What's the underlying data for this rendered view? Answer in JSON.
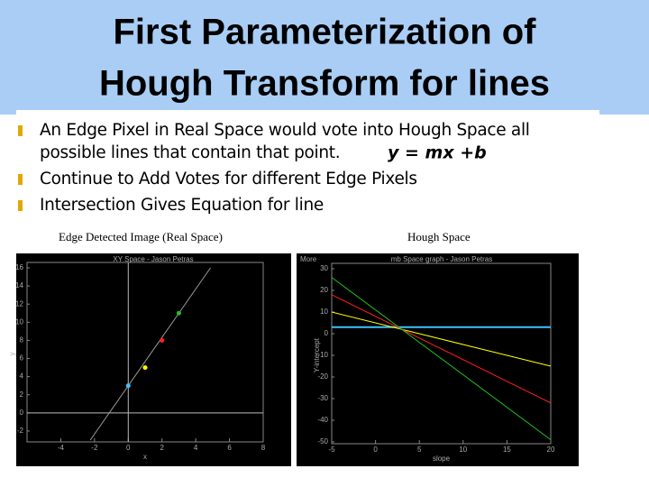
{
  "header": {
    "title_lines": [
      "First Parameterization of",
      "Hough Transform for lines"
    ]
  },
  "bullets": [
    {
      "lines": [
        "An Edge Pixel in Real Space would vote into Hough Space all",
        "possible lines that contain that point."
      ],
      "equation": "y = mx +b"
    },
    {
      "lines": [
        "Continue to Add Votes for different Edge Pixels"
      ]
    },
    {
      "lines": [
        "Intersection Gives Equation for line"
      ]
    }
  ],
  "figures": [
    {
      "caption": "Edge Detected Image (Real Space)",
      "plot_title": "XY Space - Jason Petras",
      "xlabel": "x",
      "ylabel": "y",
      "xlim": [
        -6,
        8
      ],
      "xticks": [
        -4,
        -2,
        0,
        2,
        4,
        6,
        8
      ],
      "ylim": [
        -3,
        16
      ],
      "yticks": [
        -2,
        0,
        2,
        4,
        6,
        8,
        10,
        12,
        14,
        16
      ],
      "points": {
        "x": [
          0,
          1,
          2,
          3
        ],
        "y": [
          3,
          5,
          8,
          11
        ],
        "colors": [
          "#40c0ff",
          "#ffff00",
          "#ff2020",
          "#20c020"
        ]
      }
    },
    {
      "caption": "Hough Space",
      "plot_title": "mb Space graph - Jason Petras",
      "menu": "More",
      "xlabel": "slope",
      "ylabel": "Y-intercept",
      "xlim": [
        -5,
        20
      ],
      "xticks": [
        -5,
        0,
        5,
        10,
        15,
        20
      ],
      "ylim": [
        -50,
        30
      ],
      "yticks": [
        -50,
        -40,
        -30,
        -20,
        -10,
        0,
        10,
        20,
        30
      ]
    }
  ]
}
